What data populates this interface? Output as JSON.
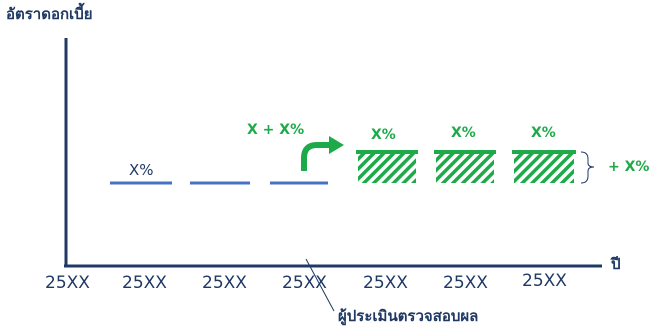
{
  "diagram": {
    "y_axis_label": "อัตราดอกเบี้ย",
    "x_axis_label": "ปี",
    "years": [
      "25XX",
      "25XX",
      "25XX",
      "25XX",
      "25XX",
      "25XX",
      "25XX"
    ],
    "current_rate_label": "X%",
    "raised_rate_label": "X + X%",
    "new_rate_labels": [
      "X%",
      "X%",
      "X%"
    ],
    "increment_label": "+ X%",
    "assessment_label": "ผู้ประเมินตรวจสอบผล",
    "colors": {
      "axis": "#1f3864",
      "current_rate": "#4472c4",
      "new_rate": "#1faa4a",
      "text": "#1f3864"
    }
  }
}
